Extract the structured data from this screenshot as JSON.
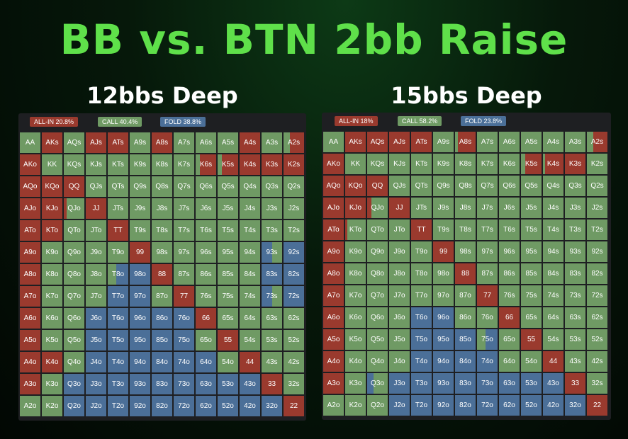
{
  "title": "BB vs. BTN 2bb Raise",
  "colors": {
    "allin": "#9a3a2e",
    "call": "#6f9a64",
    "fold": "#4b6f98"
  },
  "ranks": [
    "A",
    "K",
    "Q",
    "J",
    "T",
    "9",
    "8",
    "7",
    "6",
    "5",
    "4",
    "3",
    "2"
  ],
  "panels": [
    {
      "title": "12bbs Deep",
      "legend": {
        "allin": "ALL-IN 20.8%",
        "call": "CALL 40.4%",
        "fold": "FOLD 38.8%"
      },
      "grid": [
        "GRGRRGRGGGRGR",
        "RGGGGGGGRRRRR",
        "RRRGGGGGGGGGG",
        "RRGRGGGGGGGGG",
        "RRGGRGGGGGGGG",
        "RGGGGRGGGGGGF",
        "RGGGFFRGGGGFF",
        "RGGGFFGRGGGGF",
        "RGGFFFFFRGGGG",
        "RGGFFFFFGRGGG",
        "RRGFFFFFFGRGG",
        "RGFFFFFFFFFRG",
        "GGFFFFFFFFFFR"
      ],
      "mix": {
        "AQs": {
          "g": 0.4
        },
        "A2s": {
          "g": 0.3
        },
        "K6s": {
          "g": 0.2
        },
        "K5s": {
          "g": 0.2
        },
        "QJo": {
          "r": 0.15
        },
        "KJo": {
          "r": 0.3
        },
        "KTo": {
          "r": 0.2
        },
        "A9o": {
          "r": 0.3
        },
        "A7o": {
          "r": 0.15
        },
        "A5o": {
          "r": 0.2
        },
        "93s": {
          "f": 0.5
        },
        "83s": {
          "f": 0.7
        },
        "82s": {
          "f": 0.6
        },
        "92s": {
          "f": 0.9
        },
        "73s": {
          "f": 0.5
        },
        "72s": {
          "f": 0.8
        },
        "J7o": {
          "g": 0.6
        },
        "Q6o": {
          "g": 0.5
        },
        "T8o": {
          "g": 0.4
        },
        "K4o": {
          "r": 0.5
        },
        "54o": {
          "g": 0.5
        },
        "65o": {
          "g": 0.6
        }
      }
    },
    {
      "title": "15bbs Deep",
      "legend": {
        "allin": "ALL-IN 18%",
        "call": "CALL 58.2%",
        "fold": "FOLD 23.8%"
      },
      "grid": [
        "GRRRRGRGGGGGR",
        "RGGGGGGGGRRRG",
        "RRRGGGGGGGGGG",
        "RRGRGGGGGGGGG",
        "RGGGRGGGGGGGG",
        "RGGGGRGGGGGGG",
        "RGGGGGRGGGGGG",
        "RGGGGGGRGGGGG",
        "RGGGFFGGRGGGG",
        "RGGGFFFFGRGGG",
        "RGGGFFFFGGRGG",
        "RGGFFFFFFFFRG",
        "GGGFFFFFFFFFR"
      ],
      "mix": {
        "A2s": {
          "g": 0.3
        },
        "A8s": {
          "g": 0.15
        },
        "K5s": {
          "g": 0.2
        },
        "K4s": {
          "g": 0.1
        },
        "KJo": {
          "r": 0.3
        },
        "QJo": {
          "r": 0.2
        },
        "KTo": {
          "r": 0.1
        },
        "A9o": {
          "r": 0.4
        },
        "A7o": {
          "r": 0.2
        },
        "A5o": {
          "r": 0.3
        },
        "A4o": {
          "r": 0.15
        },
        "J4o": {
          "g": 0.5
        },
        "75o": {
          "g": 0.4
        },
        "54o": {
          "g": 0.6
        },
        "Q3o": {
          "f": 0.3
        },
        "64o": {
          "g": 0.5
        },
        "T8o": {
          "g": 0.7
        }
      }
    }
  ]
}
